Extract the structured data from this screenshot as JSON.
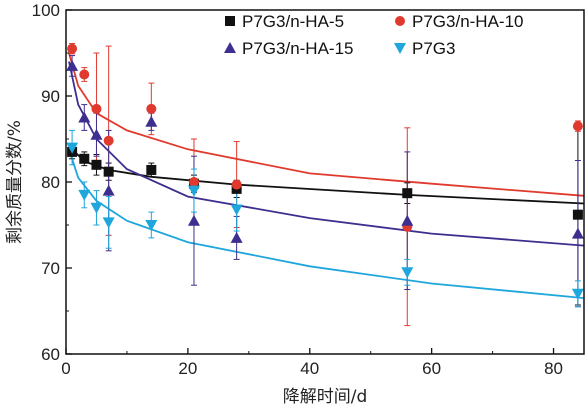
{
  "chart_data": {
    "type": "scatter",
    "xlabel": "降解时间/d",
    "ylabel": "剩余质量分数/%",
    "xlim": [
      0,
      85
    ],
    "ylim": [
      60,
      100
    ],
    "xticks": [
      0,
      20,
      40,
      60,
      80
    ],
    "yticks": [
      60,
      70,
      80,
      90,
      100
    ],
    "grid": false,
    "legend_position": "top-right",
    "series": [
      {
        "name": "P7G3/n-HA-5",
        "color": "#111111",
        "marker": "square",
        "x": [
          1,
          3,
          5,
          7,
          14,
          21,
          28,
          56,
          84
        ],
        "y": [
          83.5,
          82.7,
          82.0,
          81.2,
          81.4,
          79.8,
          79.2,
          78.7,
          76.2
        ],
        "err": [
          0.8,
          0.8,
          1.2,
          1.0,
          0.8,
          1.0,
          1.0,
          1.2,
          10.5
        ],
        "fit": [
          [
            0.5,
            84.2
          ],
          [
            3,
            82.4
          ],
          [
            7,
            81.4
          ],
          [
            14,
            80.6
          ],
          [
            28,
            79.7
          ],
          [
            56,
            78.5
          ],
          [
            85,
            77.5
          ]
        ]
      },
      {
        "name": "P7G3/n-HA-10",
        "color": "#e03a2e",
        "marker": "circle",
        "x": [
          1,
          3,
          5,
          7,
          14,
          21,
          28,
          56,
          84
        ],
        "y": [
          95.5,
          92.5,
          88.5,
          84.8,
          88.5,
          80.0,
          79.7,
          74.8,
          86.5
        ],
        "err": [
          0.6,
          0.8,
          6.5,
          11.0,
          3.0,
          5.0,
          5.0,
          11.5,
          0.6
        ],
        "fit": [
          [
            0.5,
            95.0
          ],
          [
            2,
            91.2
          ],
          [
            5,
            88.0
          ],
          [
            10,
            86.0
          ],
          [
            20,
            83.8
          ],
          [
            40,
            81.0
          ],
          [
            60,
            79.8
          ],
          [
            85,
            78.4
          ]
        ]
      },
      {
        "name": "P7G3/n-HA-15",
        "color": "#3d2f8f",
        "marker": "triangle-up",
        "x": [
          1,
          3,
          5,
          7,
          14,
          21,
          28,
          56,
          84
        ],
        "y": [
          93.5,
          87.5,
          85.5,
          79.0,
          87.0,
          75.5,
          73.5,
          75.5,
          74.0
        ],
        "err": [
          1.2,
          1.5,
          2.5,
          7.0,
          1.0,
          7.5,
          2.5,
          8.0,
          8.5
        ],
        "fit": [
          [
            0.5,
            94.0
          ],
          [
            2,
            89.0
          ],
          [
            5,
            85.0
          ],
          [
            10,
            81.5
          ],
          [
            20,
            78.3
          ],
          [
            40,
            75.8
          ],
          [
            60,
            74.0
          ],
          [
            85,
            72.6
          ]
        ]
      },
      {
        "name": "P7G3",
        "color": "#1fa6dc",
        "marker": "triangle-down",
        "x": [
          1,
          3,
          5,
          7,
          14,
          21,
          28,
          56,
          84
        ],
        "y": [
          84.0,
          78.5,
          77.0,
          75.3,
          75.0,
          79.0,
          76.8,
          69.5,
          67.0
        ],
        "err": [
          2.0,
          1.5,
          2.0,
          3.0,
          1.5,
          2.5,
          2.5,
          1.5,
          1.5
        ],
        "fit": [
          [
            0.5,
            83.8
          ],
          [
            2,
            80.5
          ],
          [
            5,
            77.8
          ],
          [
            10,
            75.5
          ],
          [
            20,
            73.0
          ],
          [
            40,
            70.2
          ],
          [
            60,
            68.2
          ],
          [
            85,
            66.5
          ]
        ]
      }
    ]
  }
}
